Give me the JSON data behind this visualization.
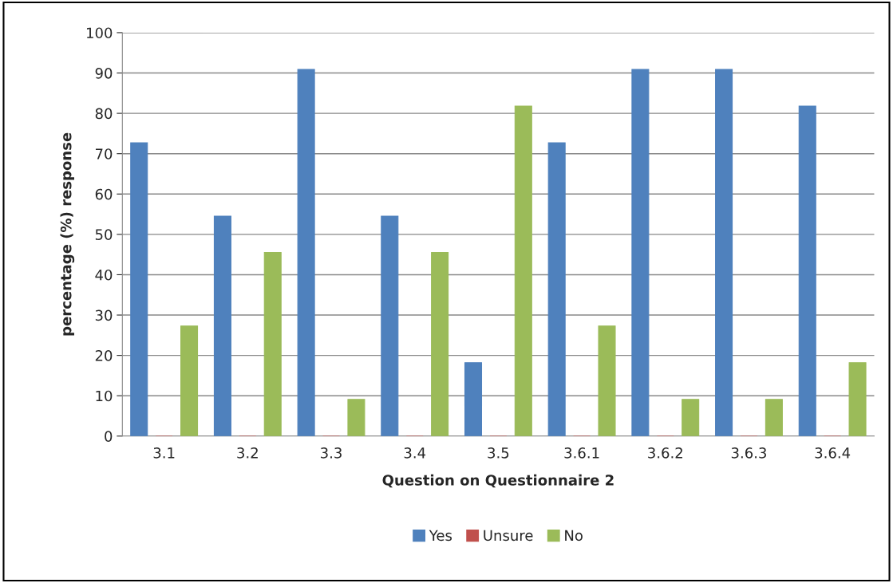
{
  "chart_data": {
    "type": "bar",
    "xlabel": "Question on Questionnaire 2",
    "ylabel": "percentage (%) response",
    "categories": [
      "3.1",
      "3.2",
      "3.3",
      "3.4",
      "3.5",
      "3.6.1",
      "3.6.2",
      "3.6.3",
      "3.6.4"
    ],
    "series": [
      {
        "name": "Yes",
        "color": "#4f81bd",
        "values": [
          72.7,
          54.5,
          90.9,
          54.5,
          18.2,
          72.7,
          90.9,
          90.9,
          81.8
        ]
      },
      {
        "name": "Unsure",
        "color": "#c0504d",
        "values": [
          0,
          0,
          0,
          0,
          0,
          0,
          0,
          0,
          0
        ]
      },
      {
        "name": "No",
        "color": "#9bbb59",
        "values": [
          27.3,
          45.5,
          9.1,
          45.5,
          81.8,
          27.3,
          9.1,
          9.1,
          18.2
        ]
      }
    ],
    "ylim": [
      0,
      100
    ],
    "yticks": [
      0,
      10,
      20,
      30,
      40,
      50,
      60,
      70,
      80,
      90,
      100
    ],
    "grid": "y",
    "legend": "bottom"
  }
}
